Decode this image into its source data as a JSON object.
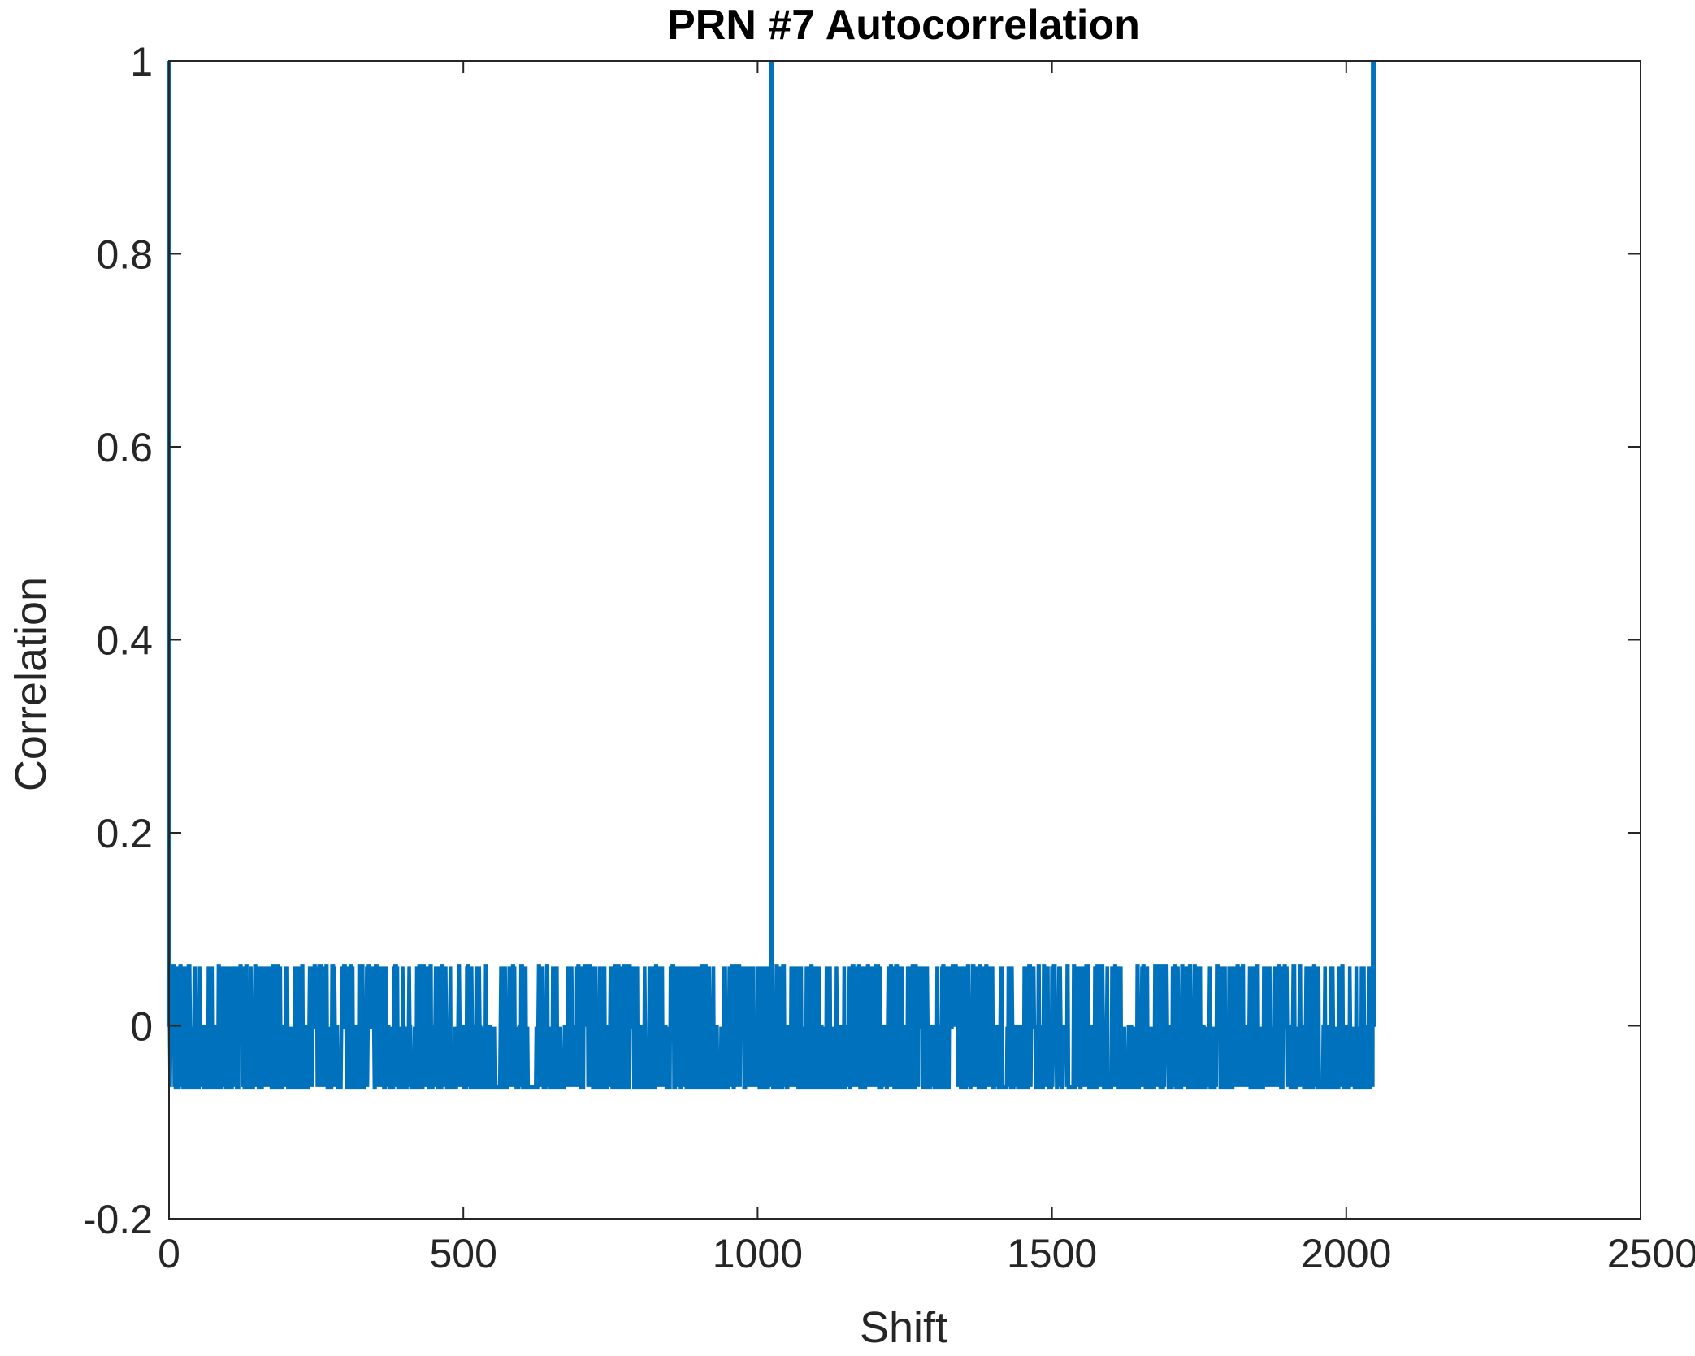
{
  "chart_data": {
    "type": "line",
    "title": "PRN #7 Autocorrelation",
    "xlabel": "Shift",
    "ylabel": "Correlation",
    "xlim": [
      0,
      2500
    ],
    "ylim": [
      -0.2,
      1
    ],
    "x_ticks": [
      0,
      500,
      1000,
      1500,
      2000,
      2500
    ],
    "x_tick_labels": [
      "0",
      "500",
      "1000",
      "1500",
      "2000",
      "2500"
    ],
    "y_ticks": [
      -0.2,
      0,
      0.2,
      0.4,
      0.6,
      0.8,
      1
    ],
    "y_tick_labels": [
      "-0.2",
      "0",
      "0.2",
      "0.4",
      "0.6",
      "0.8",
      "1"
    ],
    "grid": false,
    "legend": "none",
    "series": [
      {
        "color": "#0072BD",
        "n_points": 2047,
        "x_start": 0,
        "x_end": 2046,
        "peaks": [
          {
            "x": 0,
            "y": 1
          },
          {
            "x": 1023,
            "y": 1
          },
          {
            "x": 2046,
            "y": 1
          }
        ],
        "sidelobe_levels": [
          -0.0635,
          -0.001,
          0.0616
        ]
      }
    ]
  }
}
